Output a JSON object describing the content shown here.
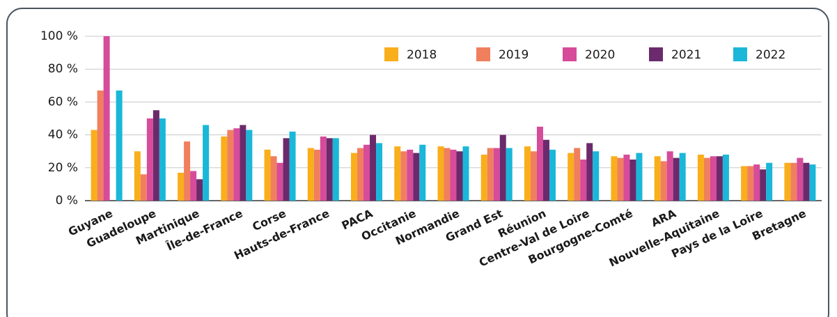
{
  "chart_data": {
    "type": "bar",
    "categories": [
      "Guyane",
      "Guadeloupe",
      "Martinique",
      "Île-de-France",
      "Corse",
      "Hauts-de-France",
      "PACA",
      "Occitanie",
      "Normandie",
      "Grand Est",
      "Réunion",
      "Centre-Val de Loire",
      "Bourgogne-Comté",
      "ARA",
      "Nouvelle-Aquitaine",
      "Pays de la Loire",
      "Bretagne"
    ],
    "series": [
      {
        "name": "2018",
        "color": "#f9ae1b",
        "values": [
          43,
          30,
          17,
          39,
          31,
          32,
          29,
          33,
          33,
          28,
          33,
          29,
          27,
          27,
          28,
          21,
          23
        ]
      },
      {
        "name": "2019",
        "color": "#f07f5e",
        "values": [
          67,
          16,
          36,
          43,
          27,
          31,
          32,
          30,
          32,
          32,
          30,
          32,
          26,
          24,
          26,
          21,
          23
        ]
      },
      {
        "name": "2020",
        "color": "#d64b9a",
        "values": [
          100,
          50,
          18,
          44,
          23,
          39,
          34,
          31,
          31,
          32,
          45,
          25,
          28,
          30,
          27,
          22,
          26
        ]
      },
      {
        "name": "2021",
        "color": "#6b2a6b",
        "values": [
          null,
          55,
          13,
          46,
          38,
          38,
          40,
          29,
          30,
          40,
          37,
          35,
          25,
          26,
          27,
          19,
          23
        ]
      },
      {
        "name": "2022",
        "color": "#1ab7d8",
        "values": [
          67,
          50,
          46,
          43,
          42,
          38,
          35,
          34,
          33,
          32,
          31,
          30,
          29,
          29,
          28,
          23,
          22
        ]
      }
    ],
    "ylim": [
      0,
      100
    ],
    "yticks": [
      {
        "value": 0,
        "label": "0 %"
      },
      {
        "value": 20,
        "label": "20 %"
      },
      {
        "value": 40,
        "label": "40 %"
      },
      {
        "value": 60,
        "label": "60 %"
      },
      {
        "value": 80,
        "label": "80 %"
      },
      {
        "value": 100,
        "label": "100 %"
      }
    ],
    "grid": true,
    "legend": "top"
  }
}
